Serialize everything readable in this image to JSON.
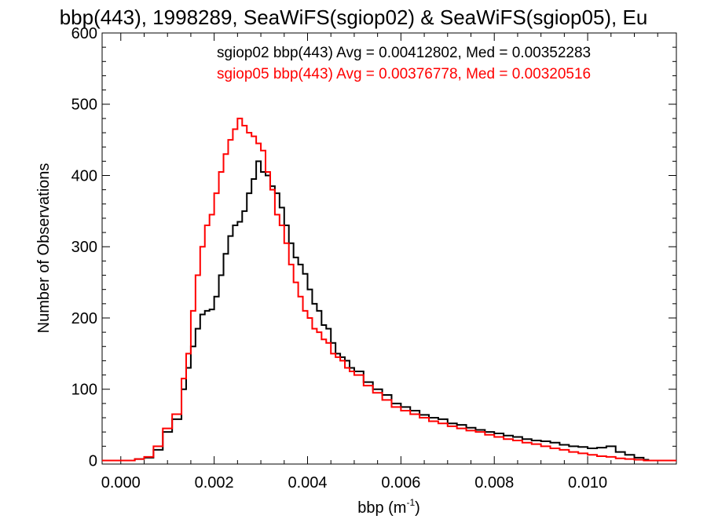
{
  "chart_data": {
    "type": "histogram",
    "title": "bbp(443), 1998289, SeaWiFS(sgiop02) & SeaWiFS(sgiop05), Eu",
    "xlabel": "bbp (m",
    "xlabel_sup": "-1",
    "xlabel_close": ")",
    "ylabel": "Number of Observations",
    "xlim": [
      -0.0004,
      0.0119
    ],
    "ylim": [
      -5,
      600
    ],
    "x_ticks": [
      0.0,
      0.002,
      0.004,
      0.006,
      0.008,
      0.01
    ],
    "x_tick_labels": [
      "0.000",
      "0.002",
      "0.004",
      "0.006",
      "0.008",
      "0.010"
    ],
    "y_ticks": [
      0,
      100,
      200,
      300,
      400,
      500,
      600
    ],
    "y_tick_labels": [
      "0",
      "100",
      "200",
      "300",
      "400",
      "500",
      "600"
    ],
    "annotations": [
      {
        "text": "sgiop02 bbp(443) Avg = 0.00412802, Med = 0.00352283",
        "color": "#000000"
      },
      {
        "text": "sgiop05 bbp(443) Avg = 0.00376778, Med = 0.00320516",
        "color": "#ff0000"
      }
    ],
    "series": [
      {
        "color": "#000000",
        "points": [
          [
            0.0,
            0
          ],
          [
            0.0003,
            2
          ],
          [
            0.0005,
            4
          ],
          [
            0.0007,
            15
          ],
          [
            0.0009,
            40
          ],
          [
            0.0011,
            58
          ],
          [
            0.0013,
            100
          ],
          [
            0.0014,
            130
          ],
          [
            0.0015,
            160
          ],
          [
            0.0016,
            185
          ],
          [
            0.0017,
            205
          ],
          [
            0.0018,
            210
          ],
          [
            0.0019,
            212
          ],
          [
            0.002,
            230
          ],
          [
            0.0021,
            260
          ],
          [
            0.0022,
            290
          ],
          [
            0.0023,
            315
          ],
          [
            0.0024,
            330
          ],
          [
            0.0025,
            335
          ],
          [
            0.0026,
            350
          ],
          [
            0.0027,
            375
          ],
          [
            0.0028,
            395
          ],
          [
            0.0029,
            420
          ],
          [
            0.003,
            405
          ],
          [
            0.0031,
            400
          ],
          [
            0.0032,
            385
          ],
          [
            0.0033,
            375
          ],
          [
            0.0034,
            355
          ],
          [
            0.0035,
            330
          ],
          [
            0.0036,
            305
          ],
          [
            0.0037,
            285
          ],
          [
            0.0038,
            275
          ],
          [
            0.0039,
            262
          ],
          [
            0.004,
            240
          ],
          [
            0.0041,
            220
          ],
          [
            0.0042,
            210
          ],
          [
            0.0043,
            190
          ],
          [
            0.0044,
            185
          ],
          [
            0.0045,
            165
          ],
          [
            0.0046,
            150
          ],
          [
            0.0047,
            145
          ],
          [
            0.0048,
            140
          ],
          [
            0.0049,
            130
          ],
          [
            0.005,
            125
          ],
          [
            0.0052,
            110
          ],
          [
            0.0054,
            100
          ],
          [
            0.0056,
            92
          ],
          [
            0.0058,
            80
          ],
          [
            0.006,
            75
          ],
          [
            0.0062,
            70
          ],
          [
            0.0064,
            64
          ],
          [
            0.0066,
            60
          ],
          [
            0.0068,
            58
          ],
          [
            0.007,
            52
          ],
          [
            0.0072,
            50
          ],
          [
            0.0074,
            46
          ],
          [
            0.0076,
            43
          ],
          [
            0.0078,
            40
          ],
          [
            0.008,
            38
          ],
          [
            0.0082,
            35
          ],
          [
            0.0084,
            33
          ],
          [
            0.0086,
            30
          ],
          [
            0.0088,
            28
          ],
          [
            0.009,
            27
          ],
          [
            0.0092,
            25
          ],
          [
            0.0094,
            22
          ],
          [
            0.0096,
            20
          ],
          [
            0.0098,
            19
          ],
          [
            0.01,
            17
          ],
          [
            0.0102,
            18
          ],
          [
            0.0104,
            20
          ],
          [
            0.0106,
            12
          ],
          [
            0.0108,
            8
          ],
          [
            0.011,
            4
          ],
          [
            0.0112,
            1
          ],
          [
            0.0113,
            0
          ]
        ]
      },
      {
        "color": "#ff0000",
        "points": [
          [
            0.0,
            0
          ],
          [
            0.0003,
            2
          ],
          [
            0.0005,
            5
          ],
          [
            0.0007,
            20
          ],
          [
            0.0009,
            45
          ],
          [
            0.0011,
            65
          ],
          [
            0.0013,
            115
          ],
          [
            0.0014,
            150
          ],
          [
            0.0015,
            210
          ],
          [
            0.0016,
            260
          ],
          [
            0.0017,
            300
          ],
          [
            0.0018,
            330
          ],
          [
            0.0019,
            345
          ],
          [
            0.002,
            375
          ],
          [
            0.0021,
            405
          ],
          [
            0.0022,
            430
          ],
          [
            0.0023,
            450
          ],
          [
            0.0024,
            465
          ],
          [
            0.0025,
            480
          ],
          [
            0.0026,
            470
          ],
          [
            0.0027,
            460
          ],
          [
            0.0028,
            455
          ],
          [
            0.0029,
            445
          ],
          [
            0.003,
            435
          ],
          [
            0.0031,
            405
          ],
          [
            0.0032,
            380
          ],
          [
            0.0033,
            345
          ],
          [
            0.0034,
            330
          ],
          [
            0.0035,
            305
          ],
          [
            0.0036,
            275
          ],
          [
            0.0037,
            250
          ],
          [
            0.0038,
            230
          ],
          [
            0.0039,
            210
          ],
          [
            0.004,
            200
          ],
          [
            0.0041,
            185
          ],
          [
            0.0042,
            180
          ],
          [
            0.0043,
            170
          ],
          [
            0.0044,
            165
          ],
          [
            0.0045,
            150
          ],
          [
            0.0046,
            145
          ],
          [
            0.0047,
            140
          ],
          [
            0.0048,
            130
          ],
          [
            0.0049,
            125
          ],
          [
            0.005,
            120
          ],
          [
            0.0052,
            105
          ],
          [
            0.0054,
            95
          ],
          [
            0.0056,
            85
          ],
          [
            0.0058,
            75
          ],
          [
            0.006,
            70
          ],
          [
            0.0062,
            65
          ],
          [
            0.0064,
            60
          ],
          [
            0.0066,
            55
          ],
          [
            0.0068,
            52
          ],
          [
            0.007,
            48
          ],
          [
            0.0072,
            45
          ],
          [
            0.0074,
            42
          ],
          [
            0.0076,
            40
          ],
          [
            0.0078,
            36
          ],
          [
            0.008,
            33
          ],
          [
            0.0082,
            30
          ],
          [
            0.0084,
            28
          ],
          [
            0.0086,
            25
          ],
          [
            0.0088,
            23
          ],
          [
            0.009,
            20
          ],
          [
            0.0092,
            17
          ],
          [
            0.0094,
            15
          ],
          [
            0.0096,
            12
          ],
          [
            0.0098,
            10
          ],
          [
            0.01,
            8
          ],
          [
            0.0102,
            6
          ],
          [
            0.0104,
            5
          ],
          [
            0.0106,
            3
          ],
          [
            0.0108,
            2
          ],
          [
            0.011,
            1
          ],
          [
            0.0112,
            0
          ]
        ]
      }
    ]
  }
}
